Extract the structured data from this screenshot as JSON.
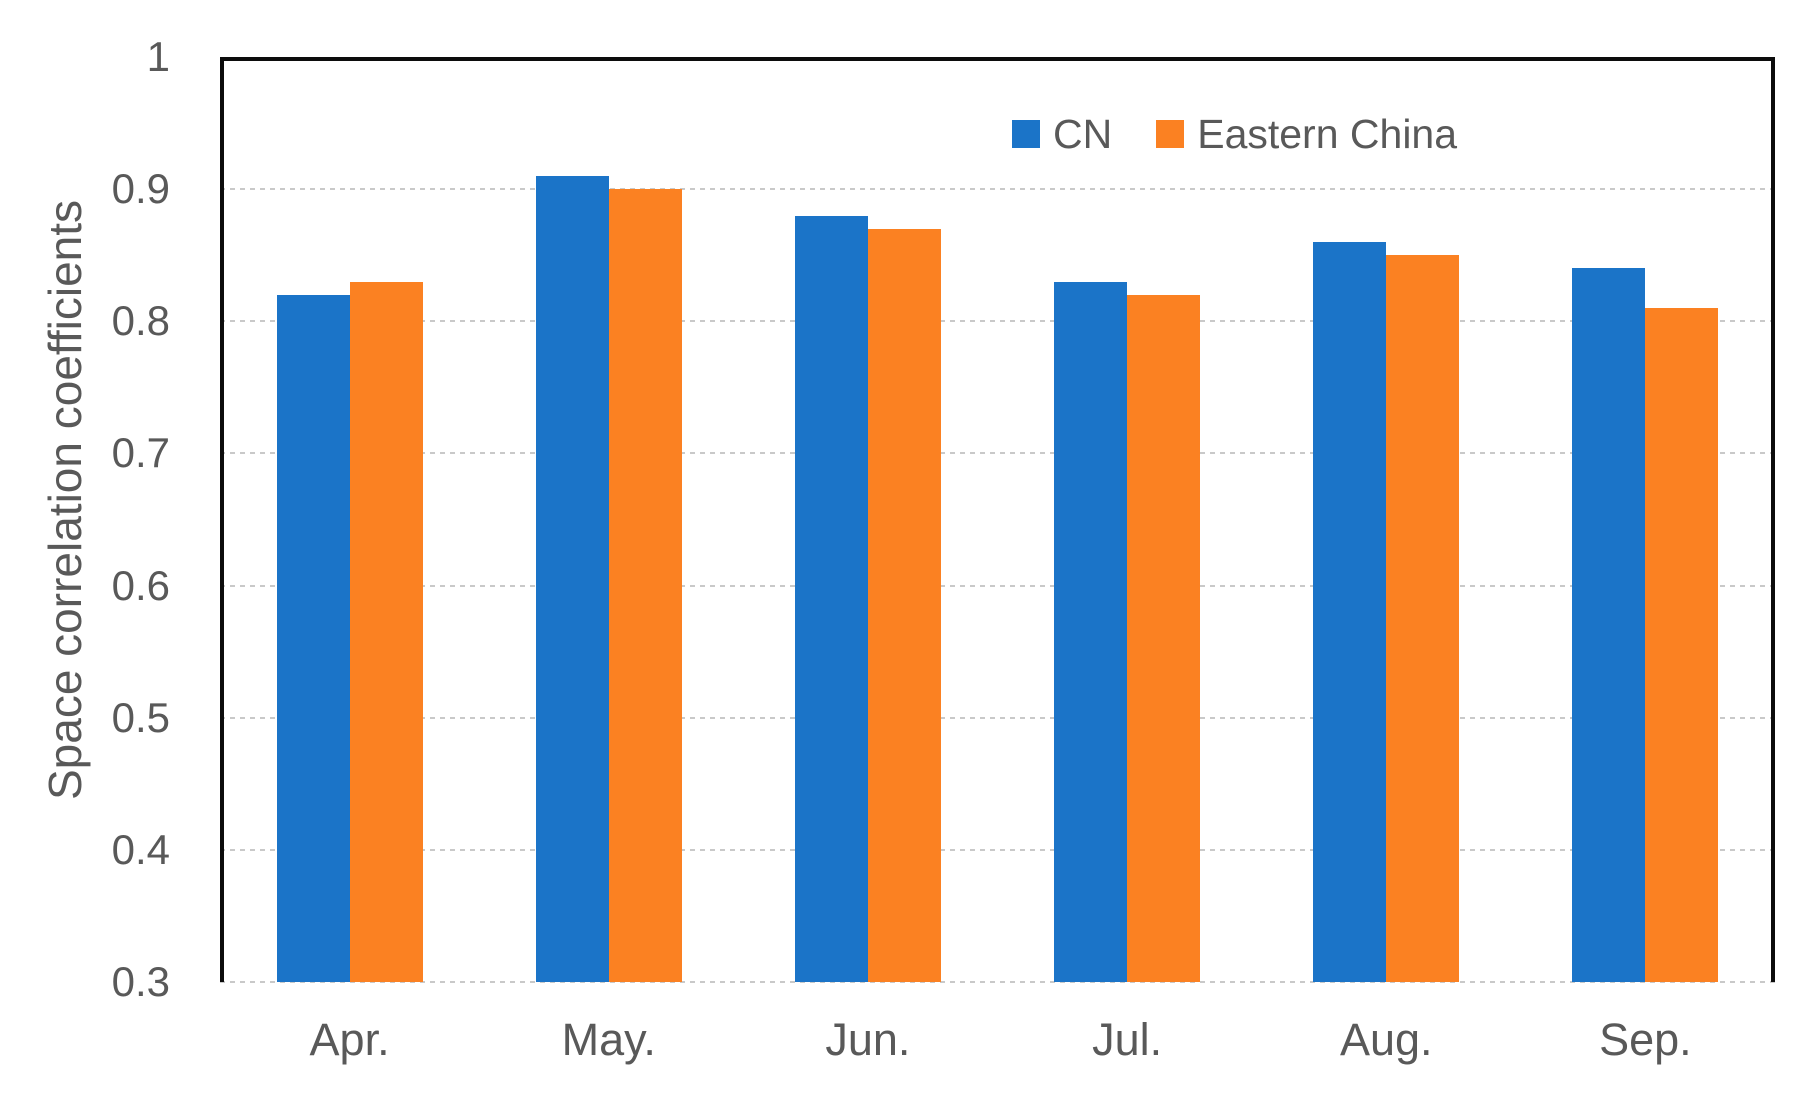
{
  "colors": {
    "cn_blue": "#1B74C8",
    "eastern_china_orange": "#FB8122",
    "axis_frame_black": "#0c0c0c",
    "gridline_gray": "#c9c9c9",
    "text_gray": "#595959",
    "background_white": "#ffffff"
  },
  "chart_data": {
    "type": "bar",
    "title": "",
    "xlabel": "",
    "ylabel": "Space correlation coefficients",
    "categories": [
      "Apr.",
      "May.",
      "Jun.",
      "Jul.",
      "Aug.",
      "Sep."
    ],
    "series": [
      {
        "name": "CN",
        "color": "#1B74C8",
        "values": [
          0.82,
          0.91,
          0.88,
          0.83,
          0.86,
          0.84
        ]
      },
      {
        "name": "Eastern China",
        "color": "#FB8122",
        "values": [
          0.83,
          0.9,
          0.87,
          0.82,
          0.85,
          0.81
        ]
      }
    ],
    "ylim": [
      0.3,
      1.0
    ],
    "yticks": [
      0.3,
      0.4,
      0.5,
      0.6,
      0.7,
      0.8,
      0.9,
      1
    ],
    "ytick_labels": [
      "0.3",
      "0.4",
      "0.5",
      "0.6",
      "0.7",
      "0.8",
      "0.9",
      "1"
    ],
    "grid": "horizontal dotted gridlines, on",
    "legend_position": "inside plot, top right",
    "legend_entries": [
      "CN",
      "Eastern China"
    ]
  }
}
